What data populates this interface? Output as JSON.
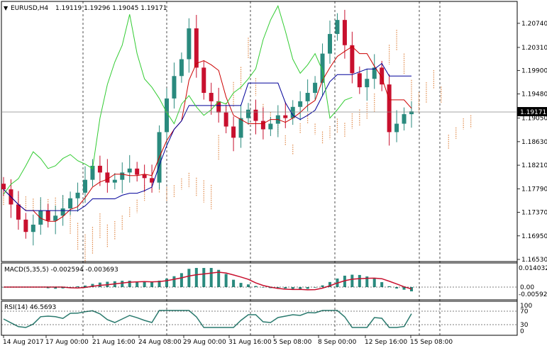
{
  "header": {
    "symbol": "EURUSD,H4",
    "ohlc": "1.19119 1.19296 1.19045 1.19171"
  },
  "price_axis": {
    "labels": [
      "1.20740",
      "1.20310",
      "1.19900",
      "1.19480",
      "1.19050",
      "1.18630",
      "1.18210",
      "1.17790",
      "1.17370",
      "1.16950",
      "1.16530"
    ],
    "current_price": "1.19171"
  },
  "macd": {
    "title": "MACD(5,35,5) -0.002594 -0.003693",
    "axis_labels": [
      "0.014032",
      "0.00",
      "-0.005922"
    ]
  },
  "rsi": {
    "title": "RSI(14) 46.5693",
    "axis_labels": [
      "100",
      "70",
      "30",
      "0"
    ]
  },
  "time_axis": {
    "labels": [
      "14 Aug 2017",
      "17 Aug 00:00",
      "21 Aug 16:00",
      "24 Aug 08:00",
      "29 Aug 00:00",
      "31 Aug 16:00",
      "5 Sep 08:00",
      "8 Sep 00:00",
      "12 Sep 16:00",
      "15 Sep 08:00"
    ]
  },
  "colors": {
    "bull": "#2a8a7e",
    "bear": "#c8102e",
    "tenkan": "#cc0000",
    "kijun": "#000099",
    "chikou": "#33cc33",
    "cloud": "#e08a4a",
    "macd_hist": "#2a8a7e",
    "macd_signal": "#c8102e",
    "rsi_line": "#2a7a6e"
  },
  "chart_data": {
    "type": "candlestick",
    "ylim": [
      1.1653,
      1.2108
    ],
    "series_close": [
      1.1778,
      1.1751,
      1.1724,
      1.1702,
      1.1715,
      1.174,
      1.1722,
      1.1731,
      1.1744,
      1.1762,
      1.1772,
      1.1795,
      1.182,
      1.1808,
      1.179,
      1.1795,
      1.1808,
      1.1815,
      1.1804,
      1.1798,
      1.179,
      1.188,
      1.194,
      1.198,
      1.201,
      1.2065,
      1.1995,
      1.195,
      1.1935,
      1.1915,
      1.189,
      1.187,
      1.1905,
      1.192,
      1.19,
      1.1885,
      1.1895,
      1.191,
      1.1905,
      1.1925,
      1.1935,
      1.195,
      1.1968,
      1.202,
      1.2055,
      1.208,
      1.2035,
      1.1985,
      1.196,
      1.1975,
      1.1995,
      1.1965,
      1.188,
      1.1895,
      1.1912,
      1.1917
    ]
  }
}
